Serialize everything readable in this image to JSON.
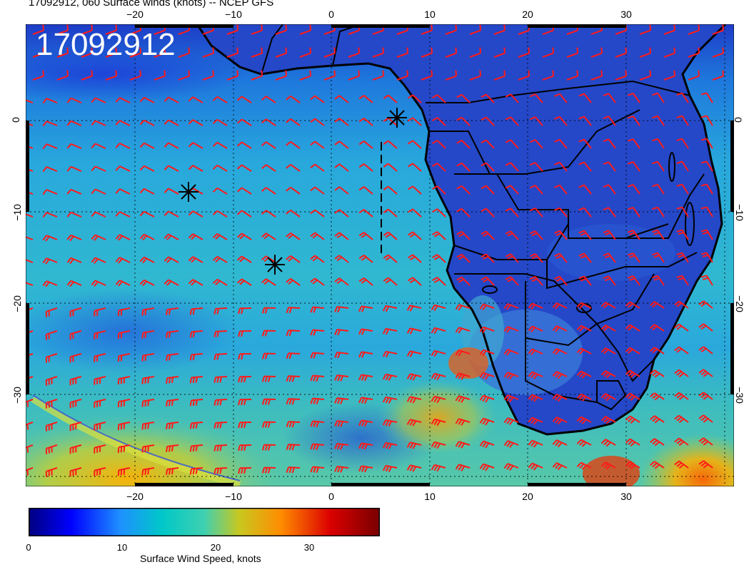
{
  "title": "17092912, 060 Surface winds (knots) -- NCEP GFS",
  "date_stamp": "17092912",
  "map": {
    "lon_ticks_top": [
      "−20",
      "−10",
      "0",
      "10",
      "20",
      "30"
    ],
    "lon_ticks_bottom": [
      "−20",
      "−10",
      "0",
      "10",
      "20",
      "30"
    ],
    "lat_ticks_left": [
      "0",
      "−10",
      "−20",
      "−30"
    ],
    "lat_ticks_right": [
      "0",
      "−10",
      "−20",
      "−30"
    ],
    "features": [
      "african-coastline",
      "country-borders",
      "wind-barbs",
      "storm-markers"
    ]
  },
  "colorbar": {
    "label": "Surface Wind Speed, knots",
    "ticks": [
      "0",
      "10",
      "20",
      "30"
    ],
    "colors": [
      "#000080",
      "#0000ff",
      "#1e90ff",
      "#00c8c8",
      "#3fd0b0",
      "#c8c820",
      "#ff8c00",
      "#dc0000",
      "#7a0000"
    ]
  },
  "barb_color": "#ff1a1a"
}
